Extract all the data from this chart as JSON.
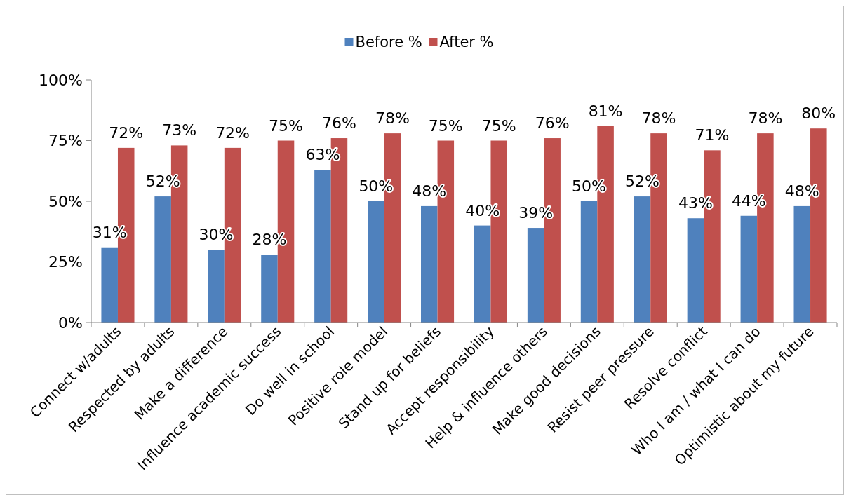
{
  "chart_data": {
    "type": "bar",
    "categories": [
      "Connect w/adults",
      "Respected by adults",
      "Make a difference",
      "Influence academic success",
      "Do well in school",
      "Positive role model",
      "Stand up for beliefs",
      "Accept responsibility",
      "Help & influence others",
      "Make good decisions",
      "Resist peer pressure",
      "Resolve conflict",
      "Who I am / what I can do",
      "Optimistic about my future"
    ],
    "series": [
      {
        "name": "Before %",
        "color": "#4f81bd",
        "values": [
          31,
          52,
          30,
          28,
          63,
          50,
          48,
          40,
          39,
          50,
          52,
          43,
          44,
          48
        ],
        "value_labels": [
          "31%",
          "52%",
          "30%",
          "28%",
          "63%",
          "50%",
          "48%",
          "40%",
          "39%",
          "50%",
          "52%",
          "43%",
          "44%",
          "48%"
        ]
      },
      {
        "name": "After %",
        "color": "#c0504d",
        "values": [
          72,
          73,
          72,
          75,
          76,
          78,
          75,
          75,
          76,
          81,
          78,
          71,
          78,
          80
        ],
        "value_labels": [
          "72%",
          "73%",
          "72%",
          "75%",
          "76%",
          "78%",
          "75%",
          "75%",
          "76%",
          "81%",
          "78%",
          "71%",
          "78%",
          "80%"
        ]
      }
    ],
    "ylim": [
      0,
      100
    ],
    "yticks": [
      {
        "value": 0,
        "label": "0%"
      },
      {
        "value": 25,
        "label": "25%"
      },
      {
        "value": 50,
        "label": "50%"
      },
      {
        "value": 75,
        "label": "75%"
      },
      {
        "value": 100,
        "label": "100%"
      }
    ],
    "grid": false,
    "legend": "top"
  }
}
